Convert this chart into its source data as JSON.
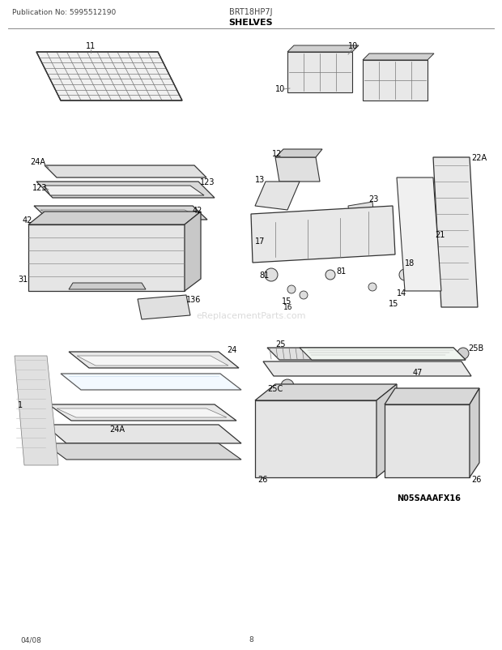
{
  "title": "SHELVES",
  "pub_no": "Publication No: 5995512190",
  "model": "BRT18HP7J",
  "date": "04/08",
  "page": "8",
  "watermark": "eReplacementParts.com",
  "diagram_code": "N05SAAAFX16",
  "bg_color": "#ffffff",
  "line_color": "#333333",
  "text_color": "#000000",
  "light_gray": "#aaaaaa",
  "mid_gray": "#777777"
}
